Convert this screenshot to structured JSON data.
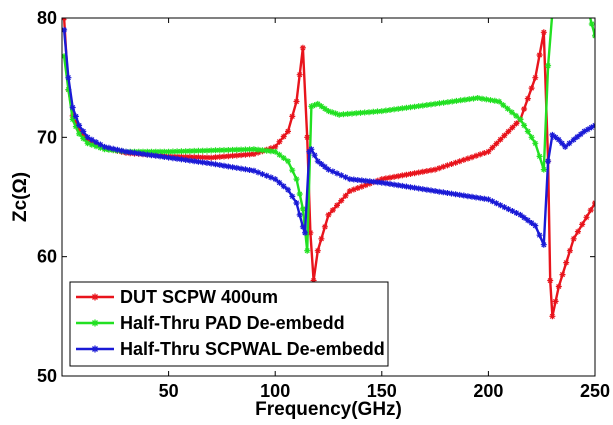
{
  "chart_data": {
    "type": "line",
    "title": "",
    "xlabel": "Frequency(GHz)",
    "ylabel": "Zc(Ω)",
    "xlim": [
      0,
      250
    ],
    "ylim": [
      50,
      80
    ],
    "x_ticks": [
      50,
      100,
      150,
      200,
      250
    ],
    "x_tick_labels": [
      "50",
      "100",
      "150",
      "200",
      "250"
    ],
    "y_ticks": [
      50,
      60,
      70,
      80
    ],
    "y_tick_labels": [
      "50",
      "60",
      "70",
      "80"
    ],
    "grid": false,
    "legend_position": "bottom-left",
    "series": [
      {
        "name": "DUT SCPW 400um",
        "color": "#e8141c",
        "marker": "star",
        "points": [
          [
            1,
            80
          ],
          [
            3,
            74
          ],
          [
            5,
            71.8
          ],
          [
            8,
            70.6
          ],
          [
            12,
            69.8
          ],
          [
            20,
            69.1
          ],
          [
            30,
            68.7
          ],
          [
            50,
            68.4
          ],
          [
            70,
            68.3
          ],
          [
            90,
            68.6
          ],
          [
            100,
            69.2
          ],
          [
            106,
            70.5
          ],
          [
            110,
            73
          ],
          [
            113,
            77.5
          ],
          [
            115,
            70
          ],
          [
            116.5,
            62
          ],
          [
            118,
            58
          ],
          [
            120,
            60.5
          ],
          [
            125,
            63.5
          ],
          [
            135,
            65.5
          ],
          [
            150,
            66.5
          ],
          [
            175,
            67.3
          ],
          [
            200,
            68.8
          ],
          [
            215,
            71.5
          ],
          [
            222,
            75
          ],
          [
            226,
            78.8
          ],
          [
            228,
            68
          ],
          [
            229,
            58
          ],
          [
            230,
            55
          ],
          [
            233,
            57.5
          ],
          [
            240,
            61.5
          ],
          [
            250,
            64.5
          ]
        ]
      },
      {
        "name": "Half-Thru PAD De-embedd",
        "color": "#22e022",
        "marker": "star",
        "points": [
          [
            1,
            76.8
          ],
          [
            3,
            74
          ],
          [
            5,
            71.5
          ],
          [
            8,
            70.3
          ],
          [
            12,
            69.5
          ],
          [
            20,
            69
          ],
          [
            30,
            68.8
          ],
          [
            50,
            68.8
          ],
          [
            70,
            68.9
          ],
          [
            90,
            69
          ],
          [
            100,
            68.8
          ],
          [
            106,
            68
          ],
          [
            110,
            66.5
          ],
          [
            113,
            64
          ],
          [
            115,
            60.5
          ],
          [
            117,
            72.6
          ],
          [
            120,
            72.8
          ],
          [
            125,
            72.2
          ],
          [
            130,
            71.9
          ],
          [
            150,
            72.2
          ],
          [
            175,
            72.8
          ],
          [
            195,
            73.3
          ],
          [
            205,
            73
          ],
          [
            215,
            71.5
          ],
          [
            222,
            69.5
          ],
          [
            226,
            67.3
          ],
          [
            228,
            76
          ],
          [
            230,
            80.5
          ],
          [
            240,
            82
          ],
          [
            247,
            80.5
          ],
          [
            250,
            78.5
          ]
        ]
      },
      {
        "name": "Half-Thru SCPWAL De-embedd",
        "color": "#1a1ad6",
        "marker": "star",
        "points": [
          [
            1,
            79
          ],
          [
            3,
            75
          ],
          [
            5,
            72.5
          ],
          [
            8,
            71
          ],
          [
            12,
            70
          ],
          [
            20,
            69.2
          ],
          [
            30,
            68.8
          ],
          [
            50,
            68.3
          ],
          [
            70,
            67.8
          ],
          [
            90,
            67.2
          ],
          [
            100,
            66.5
          ],
          [
            106,
            65.6
          ],
          [
            110,
            64.5
          ],
          [
            113,
            62.5
          ],
          [
            114,
            62
          ],
          [
            116,
            68.8
          ],
          [
            117,
            69
          ],
          [
            120,
            68
          ],
          [
            125,
            67.3
          ],
          [
            135,
            66.5
          ],
          [
            150,
            66.2
          ],
          [
            175,
            65.5
          ],
          [
            200,
            64.8
          ],
          [
            215,
            63.5
          ],
          [
            222,
            62.6
          ],
          [
            226,
            61
          ],
          [
            228,
            68
          ],
          [
            230,
            70.2
          ],
          [
            233,
            69.8
          ],
          [
            236,
            69.2
          ],
          [
            240,
            69.8
          ],
          [
            245,
            70.5
          ],
          [
            250,
            71
          ]
        ]
      }
    ]
  }
}
